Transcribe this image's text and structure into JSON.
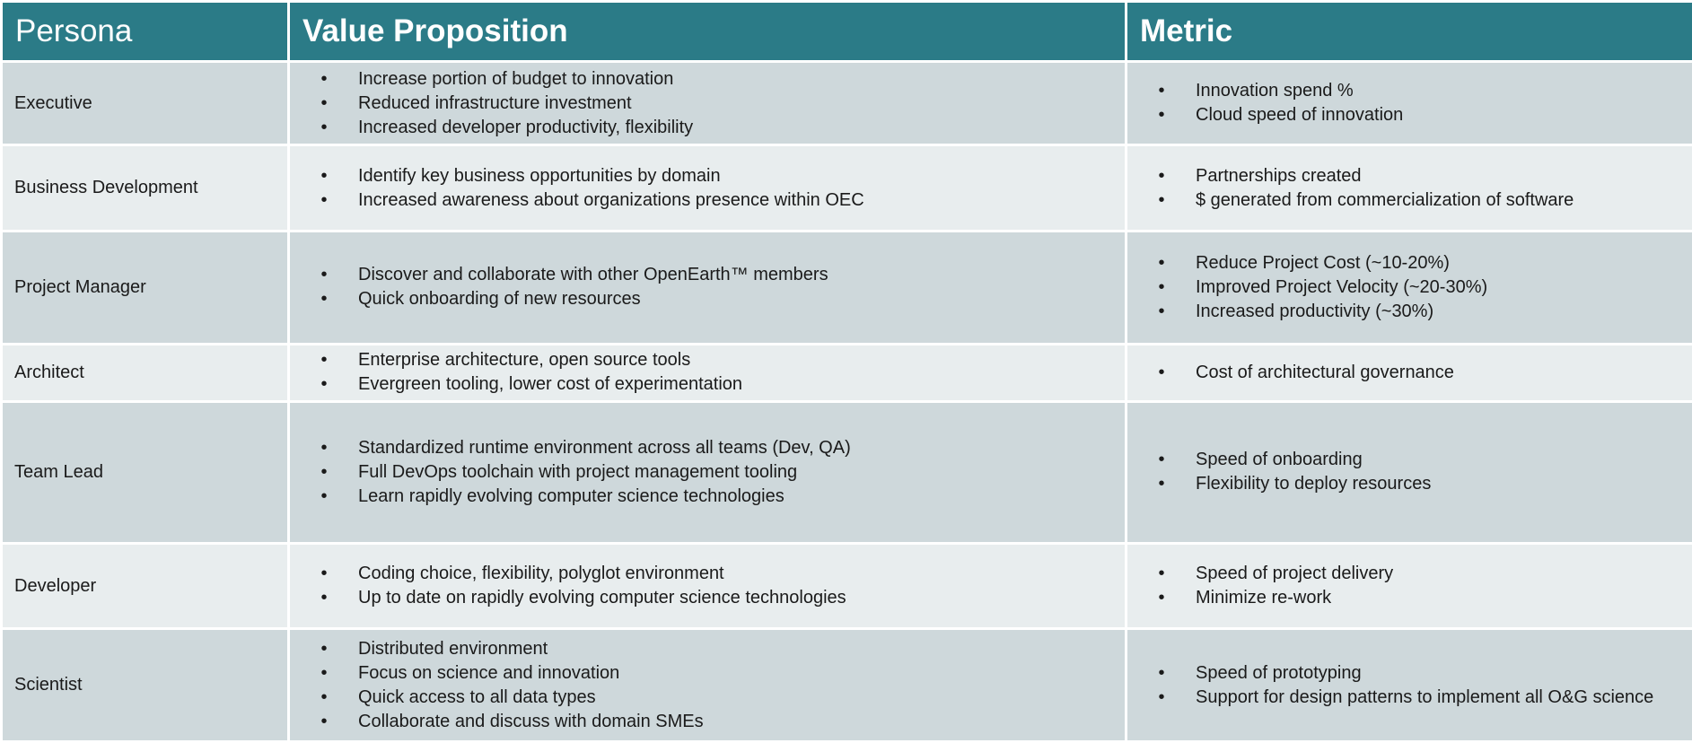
{
  "headers": {
    "persona": "Persona",
    "value": "Value Proposition",
    "metric": "Metric"
  },
  "bullet": "•",
  "rows": [
    {
      "persona": "Executive",
      "value": [
        "Increase portion of budget to innovation",
        "Reduced infrastructure investment",
        "Increased developer productivity, flexibility"
      ],
      "metric": [
        "Innovation spend %",
        "Cloud speed of innovation"
      ]
    },
    {
      "persona": "Business Development",
      "value": [
        "Identify key business opportunities by domain",
        "Increased awareness about organizations presence within OEC"
      ],
      "metric": [
        "Partnerships created",
        "$ generated from commercialization of software"
      ]
    },
    {
      "persona": "Project Manager",
      "value": [
        "Discover and collaborate with other OpenEarth™ members",
        "Quick onboarding of new resources"
      ],
      "metric": [
        "Reduce Project Cost (~10-20%)",
        "Improved Project Velocity (~20-30%)",
        "Increased productivity (~30%)"
      ]
    },
    {
      "persona": "Architect",
      "value": [
        "Enterprise architecture, open source tools",
        "Evergreen tooling, lower cost of experimentation"
      ],
      "metric": [
        "Cost of architectural governance"
      ]
    },
    {
      "persona": "Team Lead",
      "value": [
        "Standardized runtime environment across all teams (Dev, QA)",
        "Full DevOps toolchain with project management tooling",
        "Learn rapidly evolving computer science technologies"
      ],
      "metric": [
        "Speed of onboarding",
        "Flexibility to deploy resources"
      ]
    },
    {
      "persona": "Developer",
      "value": [
        "Coding choice, flexibility, polyglot environment",
        "Up to date on rapidly evolving computer science technologies"
      ],
      "metric": [
        "Speed of project delivery",
        "Minimize re-work"
      ]
    },
    {
      "persona": "Scientist",
      "value": [
        "Distributed environment",
        "Focus on science and innovation",
        "Quick access to all data types",
        "Collaborate and discuss with domain SMEs"
      ],
      "metric": [
        "Speed of prototyping",
        "Support for design patterns to implement all O&G science"
      ]
    }
  ]
}
